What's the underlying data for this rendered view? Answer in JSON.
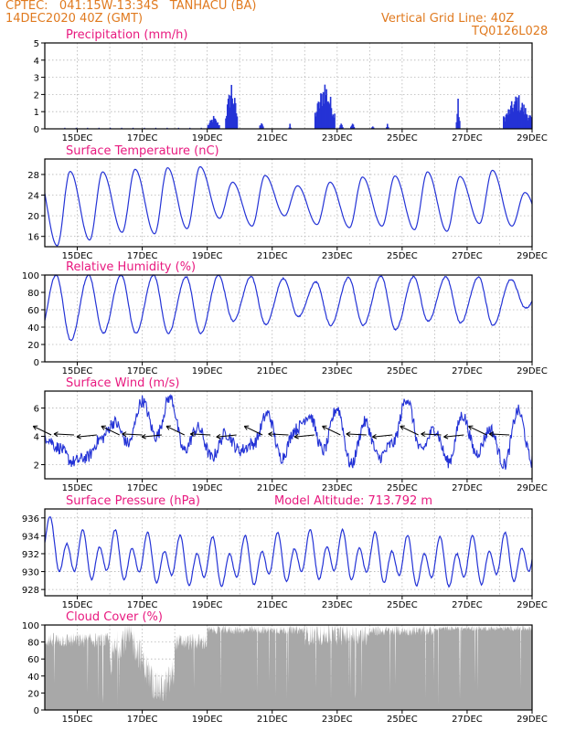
{
  "header": {
    "line1": "CPTEC:   041:15W-13:34S   TANHACU (BA)",
    "line2": "14DEC2020 40Z (GMT)",
    "grid_note": "Vertical Grid Line: 40Z",
    "code": "TQ0126L028",
    "color": "#e07a1f"
  },
  "colors": {
    "title": "#e8197f",
    "series": "#2433d6",
    "cloud": "#a8a8a8",
    "wind_arrow": "#000000"
  },
  "x_axis": {
    "start_day": 14,
    "end_day": 29,
    "tick_labels": [
      "15DEC",
      "17DEC",
      "19DEC",
      "21DEC",
      "23DEC",
      "25DEC",
      "27DEC",
      "29DEC"
    ],
    "tick_days": [
      15,
      17,
      19,
      21,
      23,
      25,
      27,
      29
    ]
  },
  "chart_data": [
    {
      "id": "precip",
      "type": "bar",
      "title": "Precipitation (mm/h)",
      "ylim": [
        0,
        5
      ],
      "yticks": [
        0,
        1,
        2,
        3,
        4,
        5
      ],
      "bursts": [
        {
          "start": 19.0,
          "end": 19.35,
          "max": 0.8
        },
        {
          "start": 19.55,
          "end": 19.9,
          "max": 3.0
        },
        {
          "start": 20.6,
          "end": 20.7,
          "max": 0.6
        },
        {
          "start": 21.5,
          "end": 21.55,
          "max": 0.3
        },
        {
          "start": 22.3,
          "end": 22.9,
          "max": 3.1
        },
        {
          "start": 23.05,
          "end": 23.15,
          "max": 0.5
        },
        {
          "start": 23.4,
          "end": 23.5,
          "max": 0.4
        },
        {
          "start": 24.05,
          "end": 24.1,
          "max": 0.3
        },
        {
          "start": 24.5,
          "end": 24.55,
          "max": 0.4
        },
        {
          "start": 26.65,
          "end": 26.75,
          "max": 1.8
        },
        {
          "start": 28.1,
          "end": 28.95,
          "max": 2.2
        }
      ]
    },
    {
      "id": "temp",
      "type": "line",
      "title": "Surface Temperature (nC)",
      "ylim": [
        14,
        31
      ],
      "yticks": [
        16,
        20,
        24,
        28
      ],
      "daily_max": [
        28.6,
        28.5,
        29.0,
        29.3,
        29.5,
        26.5,
        27.8,
        25.8,
        26.5,
        27.5,
        27.7,
        28.5,
        27.6,
        28.8,
        24.5,
        23
      ],
      "daily_min": [
        14.2,
        15.3,
        16.8,
        16.5,
        17.5,
        19.5,
        18.0,
        20.0,
        18.3,
        17.7,
        18.0,
        17.3,
        17.0,
        18.5,
        18.0,
        17
      ]
    },
    {
      "id": "rh",
      "type": "line",
      "title": "Relative Humidity (%)",
      "ylim": [
        0,
        100
      ],
      "yticks": [
        0,
        20,
        40,
        60,
        80,
        100
      ],
      "daily_max": [
        100,
        100,
        100,
        100,
        98,
        100,
        98,
        96,
        92,
        97,
        99,
        98,
        98,
        98,
        95,
        88
      ],
      "daily_min": [
        25,
        33,
        33,
        33,
        33,
        47,
        43,
        52,
        42,
        42,
        37,
        47,
        45,
        42,
        62,
        62
      ]
    },
    {
      "id": "wind",
      "type": "line",
      "title": "Surface Wind (m/s)",
      "ylim": [
        1,
        7.2
      ],
      "yticks": [
        2,
        4,
        6
      ],
      "speed_profile": [
        4.0,
        3.2,
        2.2,
        2.5,
        3.8,
        5.0,
        3.5,
        6.5,
        4.0,
        6.8,
        3.0,
        4.6,
        2.5,
        4.2,
        3.0,
        3.5,
        5.6,
        2.5,
        4.5,
        5.5,
        3.0,
        6.0,
        2.0,
        5.0,
        2.5,
        3.5,
        6.7,
        3.0,
        4.5,
        2.2,
        5.5,
        2.8,
        4.5,
        2.0,
        5.8,
        2.2
      ],
      "arrow_days": [
        14.2,
        14.9,
        15.6,
        16.3,
        17.0,
        17.6,
        18.3,
        19.1,
        19.9,
        20.7,
        21.5,
        22.3,
        23.1,
        23.9,
        24.7,
        25.5,
        26.2,
        26.9,
        27.6,
        28.3
      ]
    },
    {
      "id": "pres",
      "type": "line",
      "title": "Surface Pressure (hPa)",
      "subtitle": "Model Altitude: 713.792 m",
      "ylim": [
        927.3,
        937
      ],
      "yticks": [
        928,
        930,
        932,
        934,
        936
      ]
    },
    {
      "id": "cloud",
      "type": "area",
      "title": "Cloud Cover (%)",
      "ylim": [
        0,
        100
      ],
      "yticks": [
        0,
        20,
        40,
        60,
        80,
        100
      ]
    }
  ]
}
